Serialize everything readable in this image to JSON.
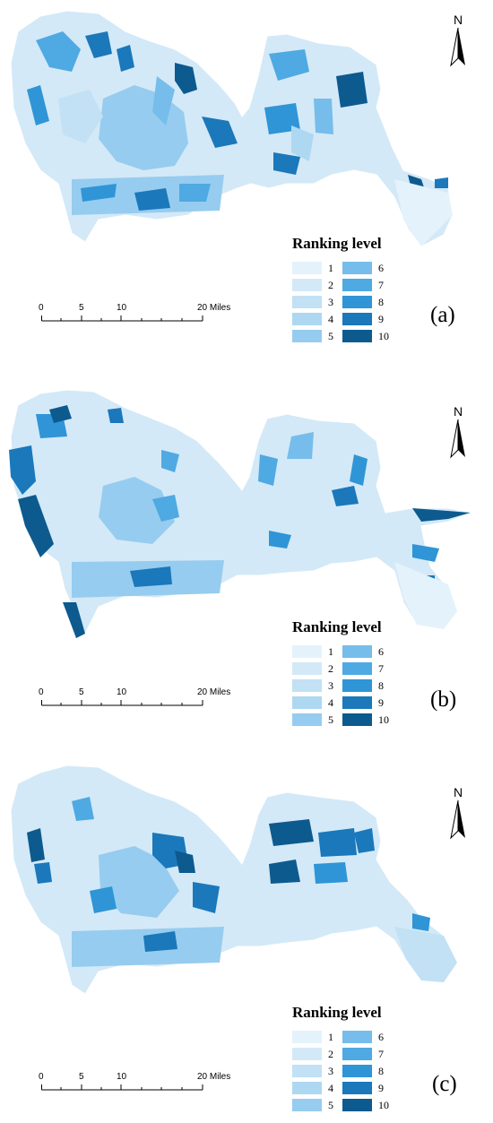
{
  "north_label": "N",
  "legend_title": "Ranking level",
  "levels": [
    "1",
    "2",
    "3",
    "4",
    "5",
    "6",
    "7",
    "8",
    "9",
    "10"
  ],
  "level_colors": [
    "#e4f2fb",
    "#d3e9f7",
    "#c2e1f4",
    "#aed8f2",
    "#96ccef",
    "#76bdeb",
    "#4fa9e2",
    "#2f95d6",
    "#1a78bb",
    "#0d5a8f"
  ],
  "scale": {
    "ticks": [
      "0",
      "5",
      "10",
      "20 Miles"
    ]
  },
  "panels": [
    {
      "label": "(a)"
    },
    {
      "label": "(b)"
    },
    {
      "label": "(c)"
    }
  ]
}
